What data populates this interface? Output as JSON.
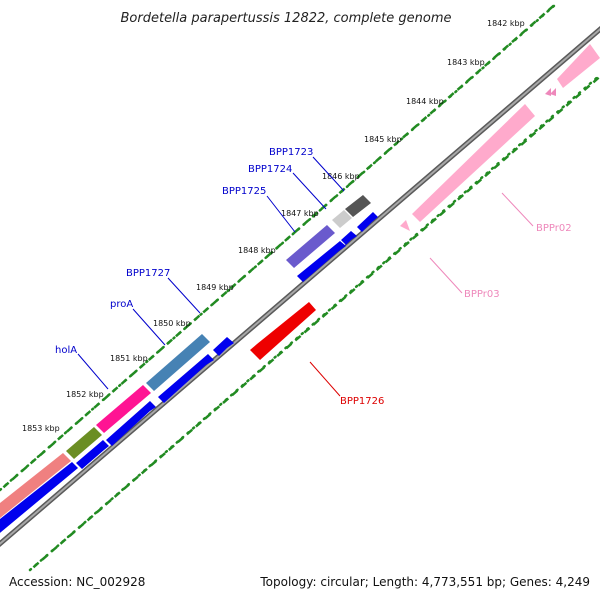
{
  "title": "Bordetella parapertussis 12822, complete genome",
  "footer": {
    "accession": "Accession: NC_002928",
    "summary": "Topology: circular; Length: 4,773,551 bp; Genes: 4,249"
  },
  "ticks": [
    "1842 kbp",
    "1843 kbp",
    "1844 kbp",
    "1845 kbp",
    "1846 kbp",
    "1847 kbp",
    "1848 kbp",
    "1849 kbp",
    "1850 kbp",
    "1851 kbp",
    "1852 kbp",
    "1853 kbp"
  ],
  "gene_labels": {
    "bpp1723": "BPP1723",
    "bpp1724": "BPP1724",
    "bpp1725": "BPP1725",
    "bpp1727": "BPP1727",
    "proA": "proA",
    "holA": "holA",
    "bpp1726": "BPP1726",
    "bppr02": "BPPr02",
    "bppr03": "BPPr03"
  },
  "colors": {
    "cds": "#0000ee",
    "backbone": "#888888",
    "grid": "#228b22",
    "label_blue": "#0000cc",
    "label_red": "#dd0000",
    "label_pink": "#ee88bb",
    "bpp1726": "#ee0000",
    "rna": "#ffaacc",
    "bpp1723": "#555555",
    "bpp1724": "#cccccc",
    "bpp1725": "#6a5acd",
    "bpp1727": "#4682b4",
    "proA": "#ff1493",
    "holA": "#6b8e23",
    "misc": "#f08080"
  }
}
